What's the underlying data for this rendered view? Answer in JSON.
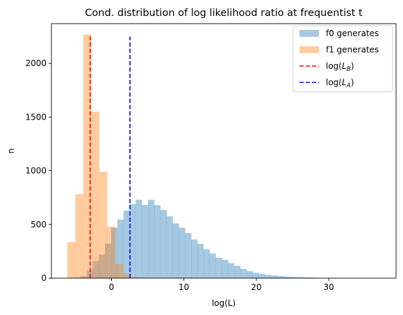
{
  "chart_data": {
    "type": "histogram",
    "title": "Cond. distribution of log likelihood ratio at frequentist  t",
    "xlabel": "log(L)",
    "ylabel": "n",
    "xlim": [
      -8.3,
      39.3
    ],
    "ylim": [
      0,
      2370
    ],
    "xticks": [
      0,
      10,
      20,
      30
    ],
    "yticks": [
      0,
      500,
      1000,
      1500,
      2000
    ],
    "grid": false,
    "legend_position": "upper right",
    "series": [
      {
        "name": "f0 generates",
        "color": "#1f77b4",
        "alpha": 0.4,
        "bin_width": 0.85,
        "bins": [
          [
            -5.15,
            5
          ],
          [
            -4.3,
            18
          ],
          [
            -3.45,
            75
          ],
          [
            -2.6,
            160
          ],
          [
            -1.75,
            220
          ],
          [
            -0.9,
            320
          ],
          [
            -0.05,
            470
          ],
          [
            0.8,
            545
          ],
          [
            1.65,
            630
          ],
          [
            2.5,
            690
          ],
          [
            3.35,
            730
          ],
          [
            4.2,
            680
          ],
          [
            5.05,
            730
          ],
          [
            5.9,
            680
          ],
          [
            6.75,
            635
          ],
          [
            7.6,
            575
          ],
          [
            8.45,
            510
          ],
          [
            9.3,
            470
          ],
          [
            10.15,
            420
          ],
          [
            11.0,
            360
          ],
          [
            11.85,
            320
          ],
          [
            12.7,
            270
          ],
          [
            13.55,
            230
          ],
          [
            14.4,
            190
          ],
          [
            15.25,
            170
          ],
          [
            16.1,
            140
          ],
          [
            16.95,
            115
          ],
          [
            17.8,
            85
          ],
          [
            18.65,
            65
          ],
          [
            19.5,
            50
          ],
          [
            20.35,
            40
          ],
          [
            21.2,
            30
          ],
          [
            22.05,
            25
          ],
          [
            22.9,
            20
          ],
          [
            23.75,
            15
          ],
          [
            24.6,
            12
          ],
          [
            25.45,
            10
          ],
          [
            26.3,
            8
          ],
          [
            27.15,
            6
          ],
          [
            28.0,
            4
          ],
          [
            28.85,
            3
          ],
          [
            29.7,
            3
          ],
          [
            30.55,
            2
          ],
          [
            31.4,
            2
          ],
          [
            32.25,
            1
          ],
          [
            33.1,
            1
          ],
          [
            33.95,
            0.5
          ],
          [
            34.8,
            0.5
          ],
          [
            35.65,
            0.5
          ],
          [
            36.5,
            0.5
          ],
          [
            37.35,
            0.5
          ]
        ]
      },
      {
        "name": "f1 generates",
        "color": "#ff7f0e",
        "alpha": 0.4,
        "bin_width": 1.1,
        "bins": [
          [
            -6.1,
            335
          ],
          [
            -5.0,
            780
          ],
          [
            -3.9,
            2270
          ],
          [
            -2.8,
            1550
          ],
          [
            -1.7,
            990
          ],
          [
            -0.6,
            480
          ],
          [
            0.5,
            130
          ],
          [
            1.6,
            40
          ],
          [
            2.7,
            10
          ],
          [
            3.8,
            3
          ]
        ]
      }
    ],
    "vlines": [
      {
        "name": "log(L_B)",
        "x": -2.95,
        "ymin": 0,
        "ymax": 2250,
        "color": "#ff0000",
        "style": "dashed"
      },
      {
        "name": "log(L_A)",
        "x": 2.55,
        "ymin": 0,
        "ymax": 2250,
        "color": "#0000ff",
        "style": "dashed"
      }
    ],
    "legend": [
      {
        "label": "f0 generates",
        "kind": "patch",
        "color": "#1f77b4"
      },
      {
        "label": "f1 generates",
        "kind": "patch",
        "color": "#ff7f0e"
      },
      {
        "label_main": "log(",
        "label_var": "L",
        "label_sub": "B",
        "label_end": ")",
        "kind": "line",
        "color": "#ff0000"
      },
      {
        "label_main": "log(",
        "label_var": "L",
        "label_sub": "A",
        "label_end": ")",
        "kind": "line",
        "color": "#0000ff"
      }
    ]
  }
}
